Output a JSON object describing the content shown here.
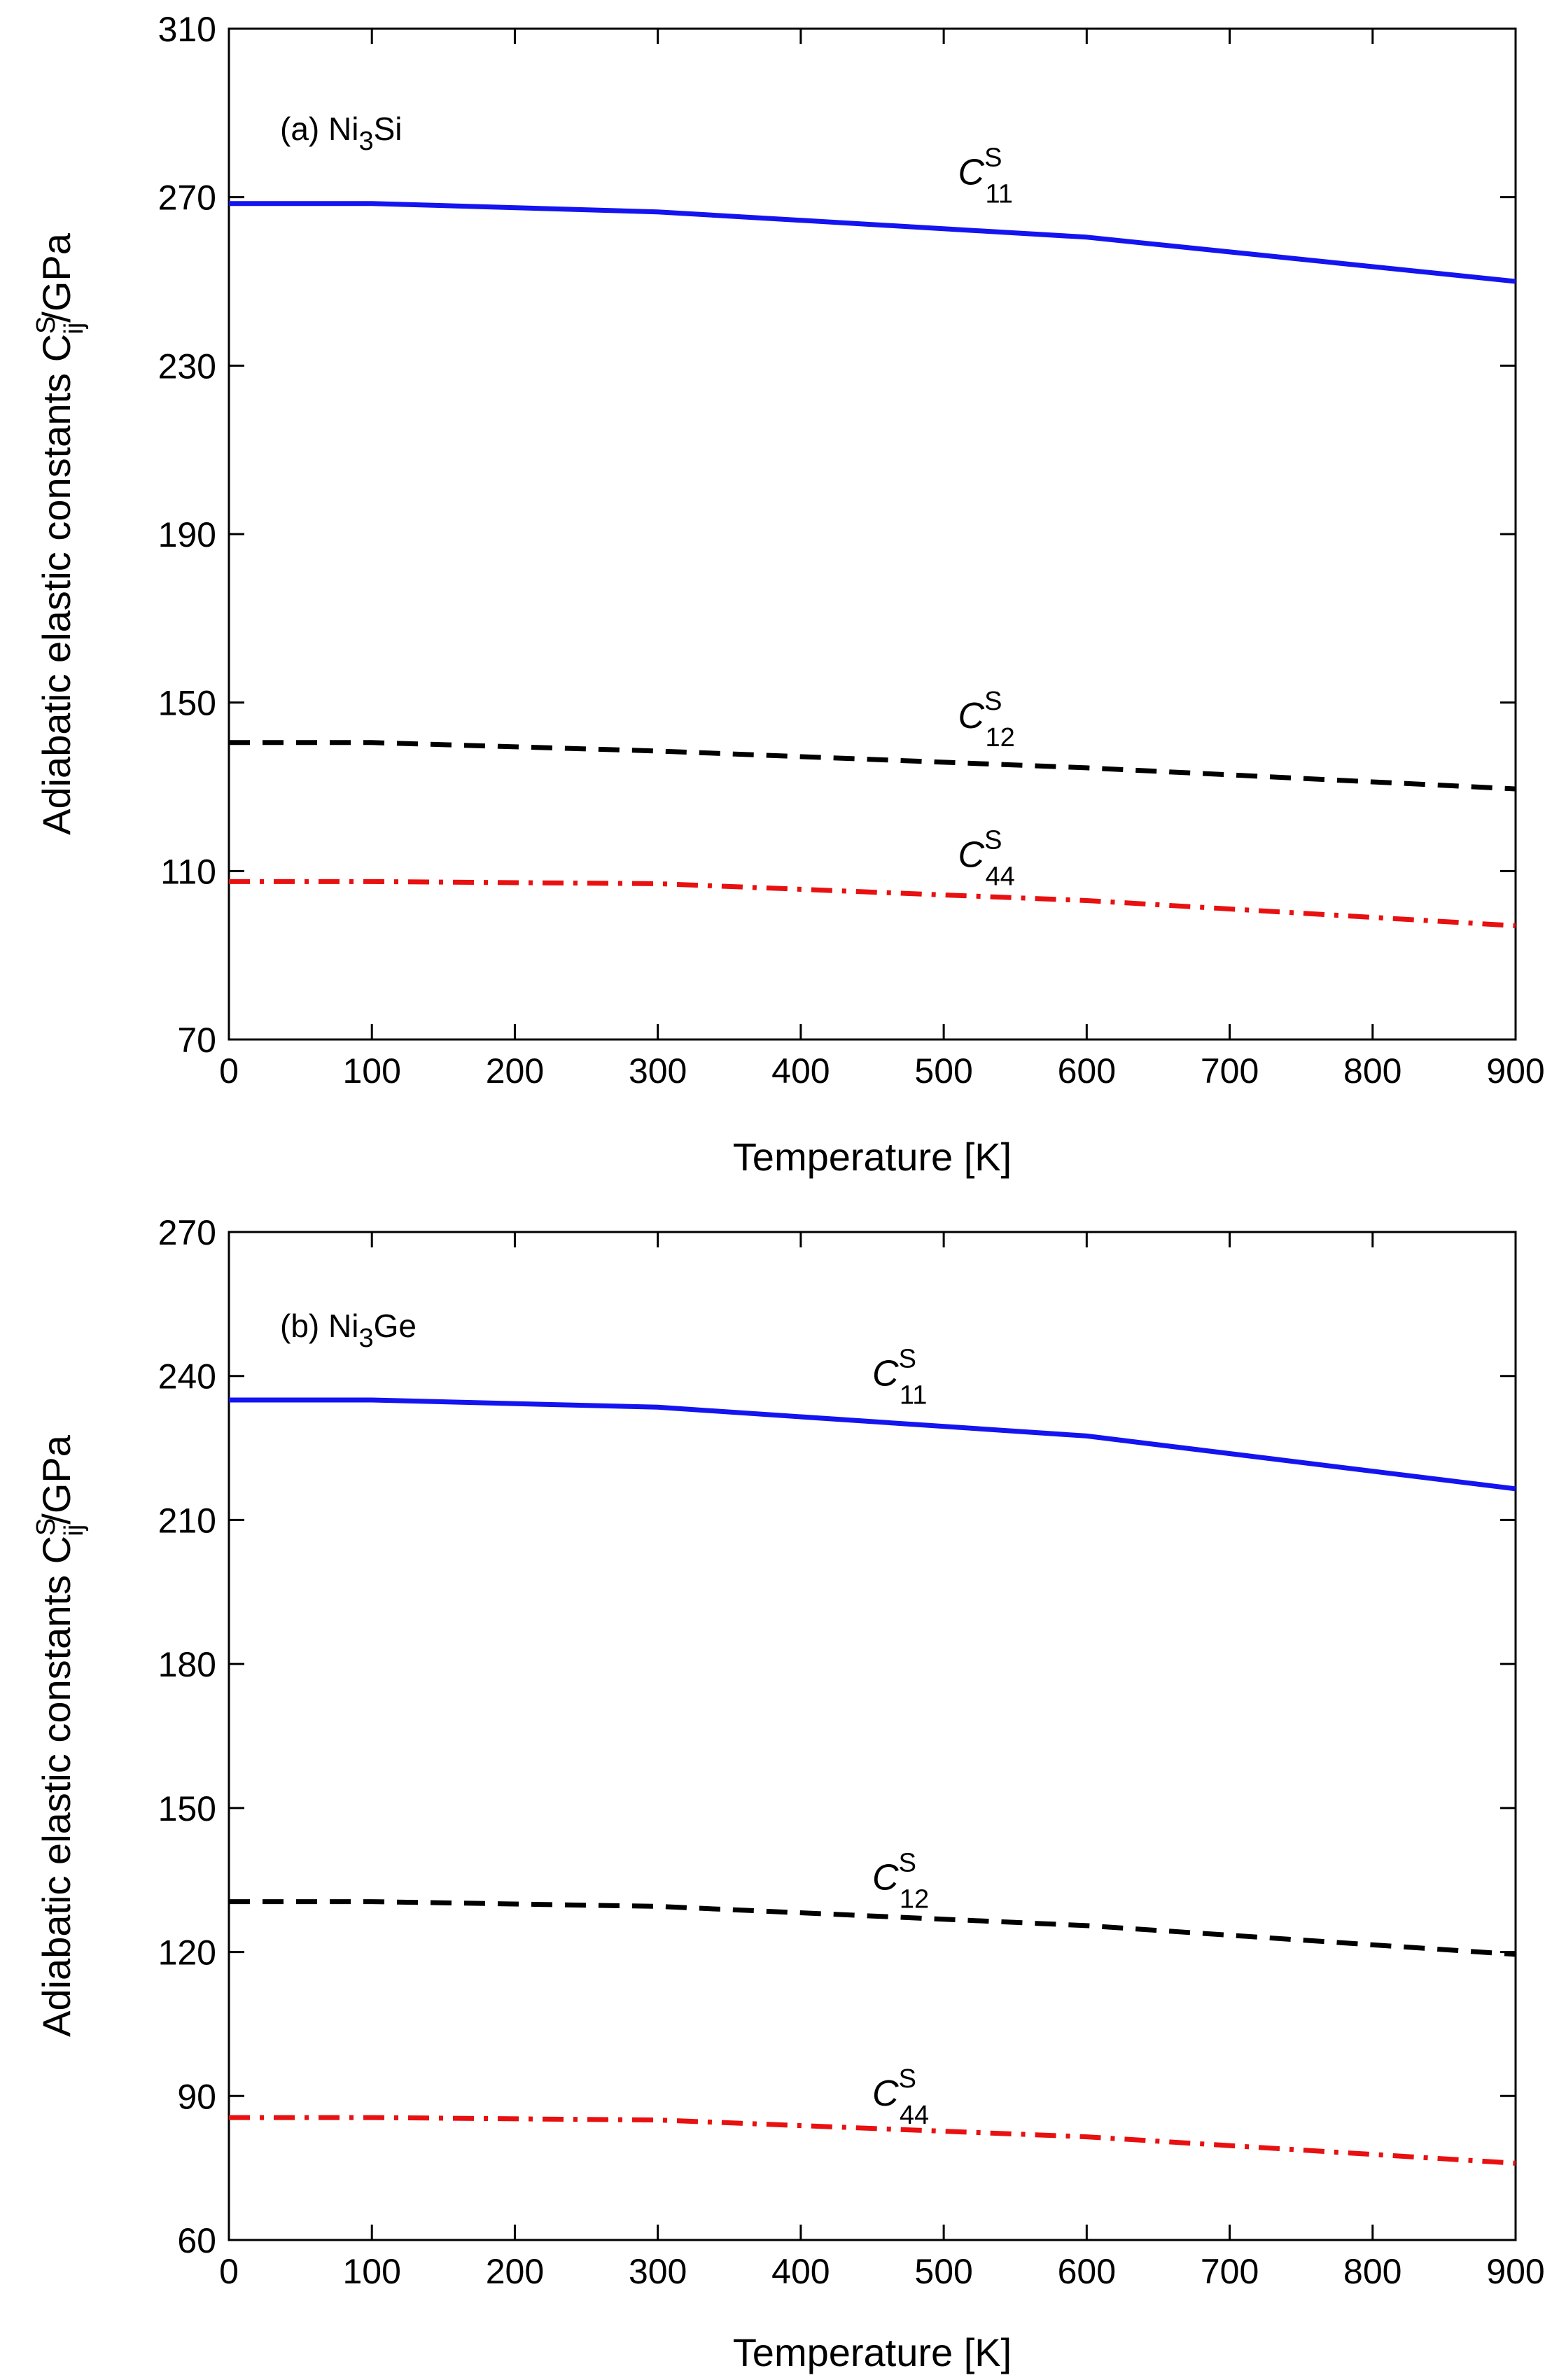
{
  "chart_data": [
    {
      "type": "line",
      "title": "",
      "annotation": {
        "prefix": "(a) Ni",
        "sub": "3",
        "suffix": "Si"
      },
      "xlabel": "Temperature [K]",
      "ylabel": {
        "main": "Adiabatic elastic constants C",
        "sup": "S",
        "sub": "ij",
        "unit": "/GPa"
      },
      "xlim": [
        0,
        900
      ],
      "ylim": [
        70,
        310
      ],
      "xticks": [
        "0",
        "100",
        "200",
        "300",
        "400",
        "500",
        "600",
        "700",
        "800",
        "900"
      ],
      "yticks": [
        "70",
        "110",
        "150",
        "190",
        "230",
        "270",
        "310"
      ],
      "x": [
        0,
        100,
        300,
        600,
        900
      ],
      "series": [
        {
          "name": "C11S",
          "label": {
            "base": "C",
            "sup": "S",
            "sub": "11"
          },
          "color": "#1414f0",
          "dash": "solid",
          "values": [
            268.5,
            268.5,
            266.5,
            260.5,
            250.0
          ],
          "label_at": [
            510,
            273
          ]
        },
        {
          "name": "C12S",
          "label": {
            "base": "C",
            "sup": "S",
            "sub": "12"
          },
          "color": "#000000",
          "dash": "dashed",
          "values": [
            140.5,
            140.5,
            138.5,
            134.5,
            129.5
          ],
          "label_at": [
            510,
            144
          ]
        },
        {
          "name": "C44S",
          "label": {
            "base": "C",
            "sup": "S",
            "sub": "44"
          },
          "color": "#e81010",
          "dash": "dashdot",
          "values": [
            107.5,
            107.5,
            107.0,
            103.0,
            97.0
          ],
          "label_at": [
            510,
            111
          ]
        }
      ]
    },
    {
      "type": "line",
      "title": "",
      "annotation": {
        "prefix": "(b) Ni",
        "sub": "3",
        "suffix": "Ge"
      },
      "xlabel": "Temperature [K]",
      "ylabel": {
        "main": "Adiabatic elastic constants C",
        "sup": "S",
        "sub": "ij",
        "unit": "/GPa"
      },
      "xlim": [
        0,
        900
      ],
      "ylim": [
        60,
        270
      ],
      "xticks": [
        "0",
        "100",
        "200",
        "300",
        "400",
        "500",
        "600",
        "700",
        "800",
        "900"
      ],
      "yticks": [
        "60",
        "90",
        "120",
        "150",
        "180",
        "210",
        "240",
        "270"
      ],
      "x": [
        0,
        100,
        300,
        600,
        900
      ],
      "series": [
        {
          "name": "C11S",
          "label": {
            "base": "C",
            "sup": "S",
            "sub": "11"
          },
          "color": "#1414f0",
          "dash": "solid",
          "values": [
            235.0,
            235.0,
            233.5,
            227.5,
            216.5
          ],
          "label_at": [
            450,
            238
          ]
        },
        {
          "name": "C12S",
          "label": {
            "base": "C",
            "sup": "S",
            "sub": "12"
          },
          "color": "#000000",
          "dash": "dashed",
          "values": [
            130.5,
            130.5,
            129.5,
            125.5,
            119.5
          ],
          "label_at": [
            450,
            133
          ]
        },
        {
          "name": "C44S",
          "label": {
            "base": "C",
            "sup": "S",
            "sub": "44"
          },
          "color": "#e81010",
          "dash": "dashdot",
          "values": [
            85.5,
            85.5,
            85.0,
            81.5,
            76.0
          ],
          "label_at": [
            450,
            88
          ]
        }
      ]
    }
  ]
}
